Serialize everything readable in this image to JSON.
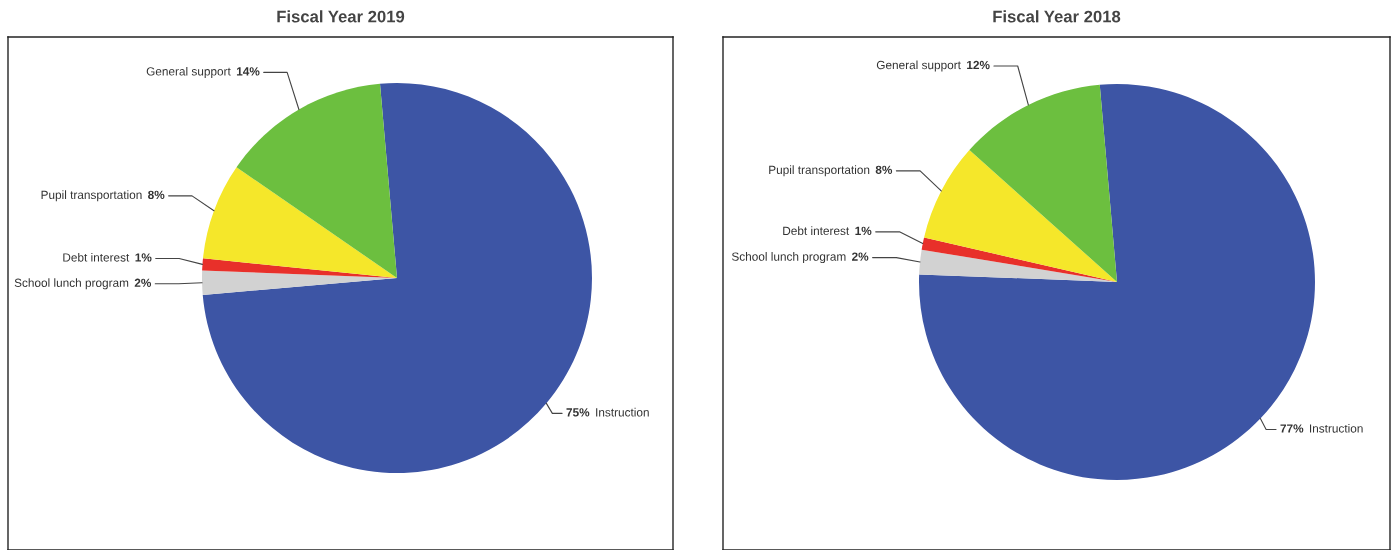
{
  "chart_data": [
    {
      "type": "pie",
      "title": "Fiscal Year 2019",
      "categories": [
        "Instruction",
        "School lunch program",
        "Debt interest",
        "Pupil transportation",
        "General support"
      ],
      "values": [
        75,
        2,
        1,
        8,
        14
      ],
      "value_labels": [
        "75%",
        "2%",
        "1%",
        "8%",
        "14%"
      ],
      "colors": [
        "#3d55a5",
        "#d2d2d2",
        "#e8302a",
        "#f5e72a",
        "#6cbf3f"
      ]
    },
    {
      "type": "pie",
      "title": "Fiscal Year 2018",
      "categories": [
        "Instruction",
        "School lunch program",
        "Debt interest",
        "Pupil transportation",
        "General support"
      ],
      "values": [
        77,
        2,
        1,
        8,
        12
      ],
      "value_labels": [
        "77%",
        "2%",
        "1%",
        "8%",
        "12%"
      ],
      "colors": [
        "#3d55a5",
        "#d2d2d2",
        "#e8302a",
        "#f5e72a",
        "#6cbf3f"
      ]
    }
  ]
}
